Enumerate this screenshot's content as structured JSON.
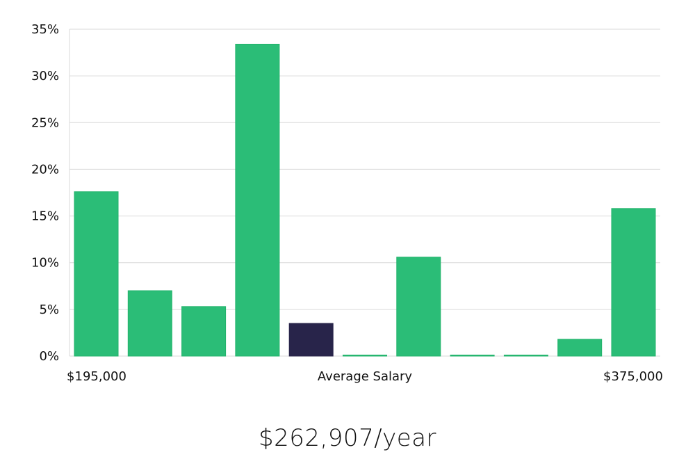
{
  "chart_data": {
    "type": "bar",
    "y_ticks": [
      "0%",
      "5%",
      "10%",
      "15%",
      "20%",
      "25%",
      "30%",
      "35%"
    ],
    "ylim": [
      0,
      35
    ],
    "grid": true,
    "values": [
      17.6,
      7.0,
      5.3,
      33.4,
      3.5,
      0.05,
      10.6,
      0.05,
      0.05,
      1.8,
      15.8
    ],
    "highlight_index": 4,
    "colors": {
      "bar": "#2bbd77",
      "bar_stroke": "#22b36b",
      "highlight": "#28244a"
    },
    "x_labels": {
      "left": "$195,000",
      "center": "Average Salary",
      "right": "$375,000"
    }
  },
  "summary": {
    "salary_text": "$262,907/year"
  }
}
